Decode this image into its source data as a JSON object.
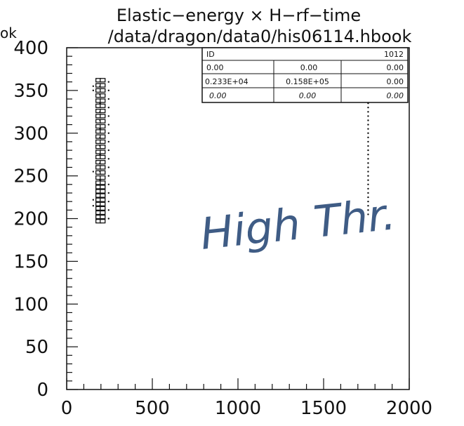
{
  "chart_data": {
    "type": "scatter",
    "title": "Elastic−energy × H−rf−time",
    "subtitle": "/data/dragon/data0/his06114.hbook",
    "xlabel": "",
    "ylabel": "",
    "xlim": [
      0,
      2000
    ],
    "ylim": [
      0,
      400
    ],
    "x_ticks": [
      "0",
      "500",
      "1000",
      "1500",
      "2000"
    ],
    "y_ticks": [
      "0",
      "50",
      "100",
      "150",
      "200",
      "250",
      "300",
      "350",
      "400"
    ],
    "grid": false,
    "legend": "none",
    "columns": [
      {
        "x": 155,
        "ys": [
          215,
          222,
          255,
          350,
          355
        ],
        "style": "dot"
      },
      {
        "x": 185,
        "ys": [
          197,
          202,
          207,
          212,
          217,
          222,
          227,
          232,
          237,
          242,
          248,
          254,
          260,
          266,
          272,
          278,
          284,
          290,
          296,
          302,
          308,
          314,
          320,
          326,
          332,
          338,
          344,
          350,
          356,
          362
        ],
        "style": "box"
      },
      {
        "x": 195,
        "ys": [
          205,
          215,
          225,
          235,
          245,
          255,
          265,
          275,
          285,
          295,
          305,
          315,
          325,
          335,
          345,
          355
        ],
        "style": "dot"
      },
      {
        "x": 210,
        "ys": [
          197,
          202,
          207,
          212,
          217,
          222,
          227,
          232,
          237,
          242,
          248,
          254,
          260,
          266,
          272,
          278,
          284,
          290,
          296,
          302,
          308,
          314,
          320,
          326,
          332,
          338,
          344,
          350,
          356,
          362
        ],
        "style": "box"
      },
      {
        "x": 245,
        "ys": [
          200,
          210,
          220,
          230,
          240,
          250,
          260,
          270,
          280,
          290,
          300,
          310,
          320,
          330,
          340,
          350,
          360
        ],
        "style": "dot"
      },
      {
        "x": 1760,
        "ys": [
          205,
          210,
          215,
          220,
          225,
          230,
          235,
          240,
          245,
          250,
          255,
          260,
          265,
          270,
          275,
          280,
          285,
          290,
          295,
          300,
          305,
          310,
          315,
          320,
          325,
          330,
          335,
          340
        ],
        "style": "dot"
      }
    ],
    "annotations": [
      "High Thr."
    ]
  },
  "stats_box": {
    "rows": [
      [
        "ID",
        "",
        "1012"
      ],
      [
        "0.00",
        "0.00",
        "0.00"
      ],
      [
        "0.233E+04",
        "0.158E+05",
        "0.00"
      ],
      [
        "0.00",
        "0.00",
        "0.00"
      ]
    ]
  },
  "edge_fragment": "ok",
  "colors": {
    "ink": "#111111",
    "handwriting": "#2a4a78",
    "paper": "#ffffff"
  }
}
